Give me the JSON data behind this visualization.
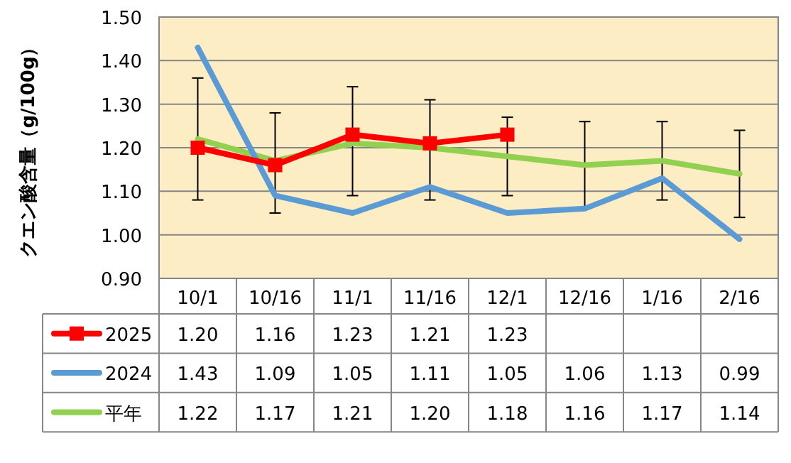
{
  "chart_data": {
    "type": "line",
    "ylabel": "クエン酸含量（g/100g）",
    "categories": [
      "10/1",
      "10/16",
      "11/1",
      "11/16",
      "12/1",
      "12/16",
      "1/16",
      "2/16"
    ],
    "ylim": [
      0.9,
      1.5
    ],
    "yticks": [
      {
        "value": 0.9,
        "label": "0.90"
      },
      {
        "value": 1.0,
        "label": "1.00"
      },
      {
        "value": 1.1,
        "label": "1.10"
      },
      {
        "value": 1.2,
        "label": "1.20"
      },
      {
        "value": 1.3,
        "label": "1.30"
      },
      {
        "value": 1.4,
        "label": "1.40"
      },
      {
        "value": 1.5,
        "label": "1.50"
      }
    ],
    "grid": "y",
    "legend": "bottom",
    "series": [
      {
        "name": "2025",
        "color": "#ff0000",
        "marker": "square",
        "values": [
          1.2,
          1.16,
          1.23,
          1.21,
          1.23,
          null,
          null,
          null
        ],
        "value_labels": [
          "1.20",
          "1.16",
          "1.23",
          "1.21",
          "1.23",
          null,
          null,
          null
        ]
      },
      {
        "name": "2024",
        "color": "#5b9bd5",
        "values": [
          1.43,
          1.09,
          1.05,
          1.11,
          1.05,
          1.06,
          1.13,
          0.99
        ],
        "value_labels": [
          "1.43",
          "1.09",
          "1.05",
          "1.11",
          "1.05",
          "1.06",
          "1.13",
          "0.99"
        ]
      },
      {
        "name": "平年",
        "color": "#92d050",
        "values": [
          1.22,
          1.17,
          1.21,
          1.2,
          1.18,
          1.16,
          1.17,
          1.14
        ],
        "value_labels": [
          "1.22",
          "1.17",
          "1.21",
          "1.20",
          "1.18",
          "1.16",
          "1.17",
          "1.14"
        ],
        "errors": [
          [
            1.08,
            1.36
          ],
          [
            1.05,
            1.28
          ],
          [
            1.09,
            1.34
          ],
          [
            1.08,
            1.31
          ],
          [
            1.09,
            1.27
          ],
          [
            1.06,
            1.26
          ],
          [
            1.08,
            1.26
          ],
          [
            1.04,
            1.24
          ]
        ]
      }
    ]
  }
}
